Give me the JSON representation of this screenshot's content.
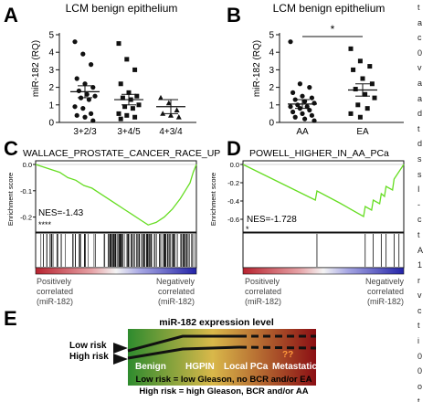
{
  "panels": {
    "A": {
      "letter": "A",
      "chart_data": {
        "type": "scatter",
        "title": "LCM benign epithelium",
        "ylabel": "miR-182 (RQ)",
        "xlabel": "",
        "ylim": [
          0,
          5
        ],
        "yticks": [
          0,
          1,
          2,
          3,
          4,
          5
        ],
        "grid": false,
        "categories": [
          "3+2/3",
          "3+4/5",
          "4+3/4"
        ],
        "markers": [
          "circle",
          "square",
          "triangle"
        ],
        "series": [
          {
            "values": [
              4.6,
              3.9,
              3.3,
              2.5,
              2.2,
              2.0,
              1.8,
              1.6,
              1.5,
              1.4,
              1.3,
              0.9,
              0.8,
              0.5,
              0.4,
              0.3,
              0.1
            ],
            "mean": 1.75,
            "sem": 0.34
          },
          {
            "values": [
              4.5,
              3.6,
              3.0,
              2.2,
              1.7,
              1.5,
              1.4,
              1.3,
              1.0,
              0.9,
              0.8,
              0.5,
              0.4,
              0.3,
              0.2
            ],
            "mean": 1.3,
            "sem": 0.3
          },
          {
            "values": [
              1.4,
              1.1,
              0.7,
              0.5,
              0.4,
              0.3
            ],
            "mean": 0.9,
            "sem": 0.4
          }
        ]
      }
    },
    "B": {
      "letter": "B",
      "chart_data": {
        "type": "scatter",
        "title": "LCM benign epithelium",
        "ylabel": "miR-182 (RQ)",
        "xlabel": "",
        "ylim": [
          0,
          5
        ],
        "yticks": [
          0,
          1,
          2,
          3,
          4,
          5
        ],
        "grid": false,
        "categories": [
          "AA",
          "EA"
        ],
        "markers": [
          "circle",
          "square"
        ],
        "significance": "*",
        "series": [
          {
            "values": [
              4.6,
              2.2,
              2.0,
              1.7,
              1.5,
              1.4,
              1.3,
              1.2,
              1.1,
              1.0,
              0.9,
              0.9,
              0.8,
              0.7,
              0.6,
              0.5,
              0.4,
              0.3,
              0.2,
              0.1
            ],
            "mean": 1.05,
            "sem": 0.25
          },
          {
            "values": [
              4.2,
              3.5,
              3.2,
              3.0,
              2.5,
              2.2,
              1.9,
              1.6,
              1.4,
              1.0,
              0.8,
              0.5,
              0.3
            ],
            "mean": 1.85,
            "sem": 0.35
          }
        ]
      }
    },
    "C": {
      "letter": "C",
      "chart_data": {
        "type": "line",
        "title": "WALLACE_PROSTATE_CANCER_RACE_UP",
        "ylabel": "Enrichment score",
        "ylim": [
          -0.25,
          0.0
        ],
        "yticks": [
          0.0,
          -0.1,
          -0.2
        ],
        "nes_label": "NES=-1.43",
        "significance": "****",
        "low_label": [
          "Positively",
          "correlated",
          "(miR-182)"
        ],
        "high_label": [
          "Negatively",
          "correlated",
          "(miR-182)"
        ],
        "series": [
          {
            "x": [
              0,
              0.05,
              0.1,
              0.15,
              0.2,
              0.25,
              0.3,
              0.35,
              0.4,
              0.45,
              0.5,
              0.55,
              0.6,
              0.65,
              0.7,
              0.75,
              0.8,
              0.85,
              0.9,
              0.93,
              0.96,
              0.98,
              1.0
            ],
            "y": [
              0,
              -0.01,
              -0.02,
              -0.03,
              -0.05,
              -0.06,
              -0.08,
              -0.09,
              -0.11,
              -0.13,
              -0.15,
              -0.17,
              -0.19,
              -0.21,
              -0.23,
              -0.22,
              -0.2,
              -0.17,
              -0.13,
              -0.1,
              -0.07,
              -0.03,
              0.0
            ]
          }
        ]
      }
    },
    "D": {
      "letter": "D",
      "chart_data": {
        "type": "line",
        "title": "POWELL_HIGHER_IN_AA_PCa",
        "ylabel": "Enrichment score",
        "ylim": [
          -0.7,
          0.0
        ],
        "yticks": [
          0.0,
          -0.2,
          -0.4,
          -0.6
        ],
        "nes_label": "NES=-1.728",
        "significance": "*",
        "low_label": [
          "Positively",
          "correlated",
          "(miR-182)"
        ],
        "high_label": [
          "Negatively",
          "correlated",
          "(miR-182)"
        ],
        "series": [
          {
            "x": [
              0,
              0.15,
              0.3,
              0.45,
              0.46,
              0.6,
              0.75,
              0.76,
              0.8,
              0.81,
              0.85,
              0.86,
              0.88,
              0.89,
              0.93,
              0.94,
              1.0
            ],
            "y": [
              0,
              -0.13,
              -0.26,
              -0.39,
              -0.29,
              -0.42,
              -0.57,
              -0.46,
              -0.5,
              -0.39,
              -0.43,
              -0.32,
              -0.35,
              -0.24,
              -0.28,
              -0.16,
              0.0
            ]
          }
        ]
      }
    },
    "E": {
      "letter": "E",
      "title": "miR-182 expression level",
      "risk_low": "Low risk",
      "risk_high": "High risk",
      "stages": [
        "Benign",
        "HGPIN",
        "Local PCa",
        "Metastatic"
      ],
      "unknown": "??",
      "legend_low": "Low risk = low Gleason, no BCR and/or EA",
      "legend_high": "High risk = high Gleason, BCR and/or AA",
      "colors": {
        "start": "#2e8b2e",
        "mid": "#d9b84a",
        "end": "#8b0f14",
        "line": "#111111"
      }
    }
  },
  "colors": {
    "es_curve": "#66dd22",
    "rank_red": "#c0303a",
    "rank_white": "#f4f4f4",
    "rank_blue": "#2a2ab0"
  },
  "side_text": [
    "t",
    "a",
    "c",
    "0",
    "v",
    "a",
    "a",
    "d",
    "t",
    "d",
    "s",
    "s",
    "I",
    "-",
    "c",
    "t",
    "A",
    "1",
    "r",
    "v",
    "c",
    "t",
    "i",
    "0",
    "0",
    "o",
    "t"
  ]
}
